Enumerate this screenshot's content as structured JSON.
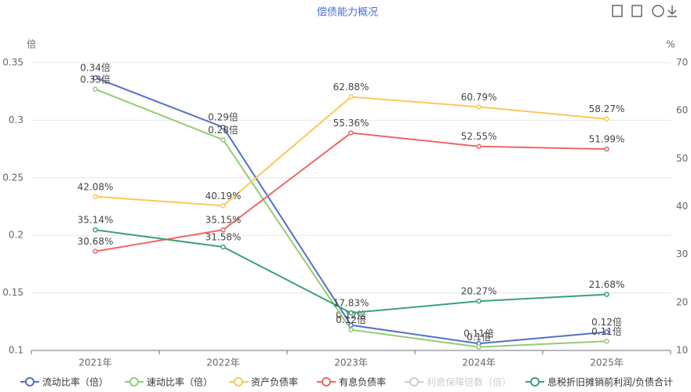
{
  "chart_data": {
    "type": "line",
    "title": "偿债能力概况",
    "y_label": "倍",
    "y2_label": "%",
    "categories": [
      "2021年",
      "2022年",
      "2023年",
      "2024年",
      "2025年"
    ],
    "ylim": [
      0.1,
      0.35
    ],
    "yticks": [
      0.1,
      0.15,
      0.2,
      0.25,
      0.3,
      0.35
    ],
    "y2lim": [
      10,
      70
    ],
    "y2ticks": [
      10,
      20,
      30,
      40,
      50,
      60,
      70
    ],
    "grid": true,
    "legend": "bottom",
    "series": [
      {
        "name": "流动比率（倍）",
        "color": "#5470c6",
        "values": [
          0.337,
          0.294,
          0.122,
          0.106,
          0.116
        ],
        "value_labels": [
          "0.34倍",
          "0.29倍",
          "0.12倍",
          "0.11倍",
          "0.12倍"
        ]
      },
      {
        "name": "速动比率（倍）",
        "color": "#91cc75",
        "values": [
          0.327,
          0.283,
          0.118,
          0.103,
          0.108
        ],
        "value_labels": [
          "0.33倍",
          "0.28倍",
          "0.12倍",
          "0.1倍",
          "0.11倍"
        ]
      },
      {
        "name": "资产负债率",
        "color": "#fac858",
        "axis": "y2",
        "values": [
          42.08,
          40.19,
          62.88,
          60.79,
          58.27
        ],
        "value_labels": [
          "42.08%",
          "40.19%",
          "62.88%",
          "60.79%",
          "58.27%"
        ]
      },
      {
        "name": "有息负债率",
        "color": "#ee6666",
        "axis": "y2",
        "values": [
          30.68,
          35.15,
          55.36,
          52.55,
          51.99
        ],
        "value_labels": [
          "30.68%",
          "35.15%",
          "55.36%",
          "52.55%",
          "51.99%"
        ]
      },
      {
        "name": "利息保障倍数（倍）",
        "color": "#cccccc",
        "selected": false,
        "values": [
          null,
          null,
          null,
          null,
          null
        ]
      },
      {
        "name": "息税折旧摊销前利润/负债合计",
        "color": "#3ba272",
        "axis": "y2",
        "values": [
          35.14,
          31.58,
          17.83,
          20.27,
          21.68
        ],
        "value_labels": [
          "35.14%",
          "31.58%",
          "17.83%",
          "20.27%",
          "21.68%"
        ]
      }
    ]
  }
}
